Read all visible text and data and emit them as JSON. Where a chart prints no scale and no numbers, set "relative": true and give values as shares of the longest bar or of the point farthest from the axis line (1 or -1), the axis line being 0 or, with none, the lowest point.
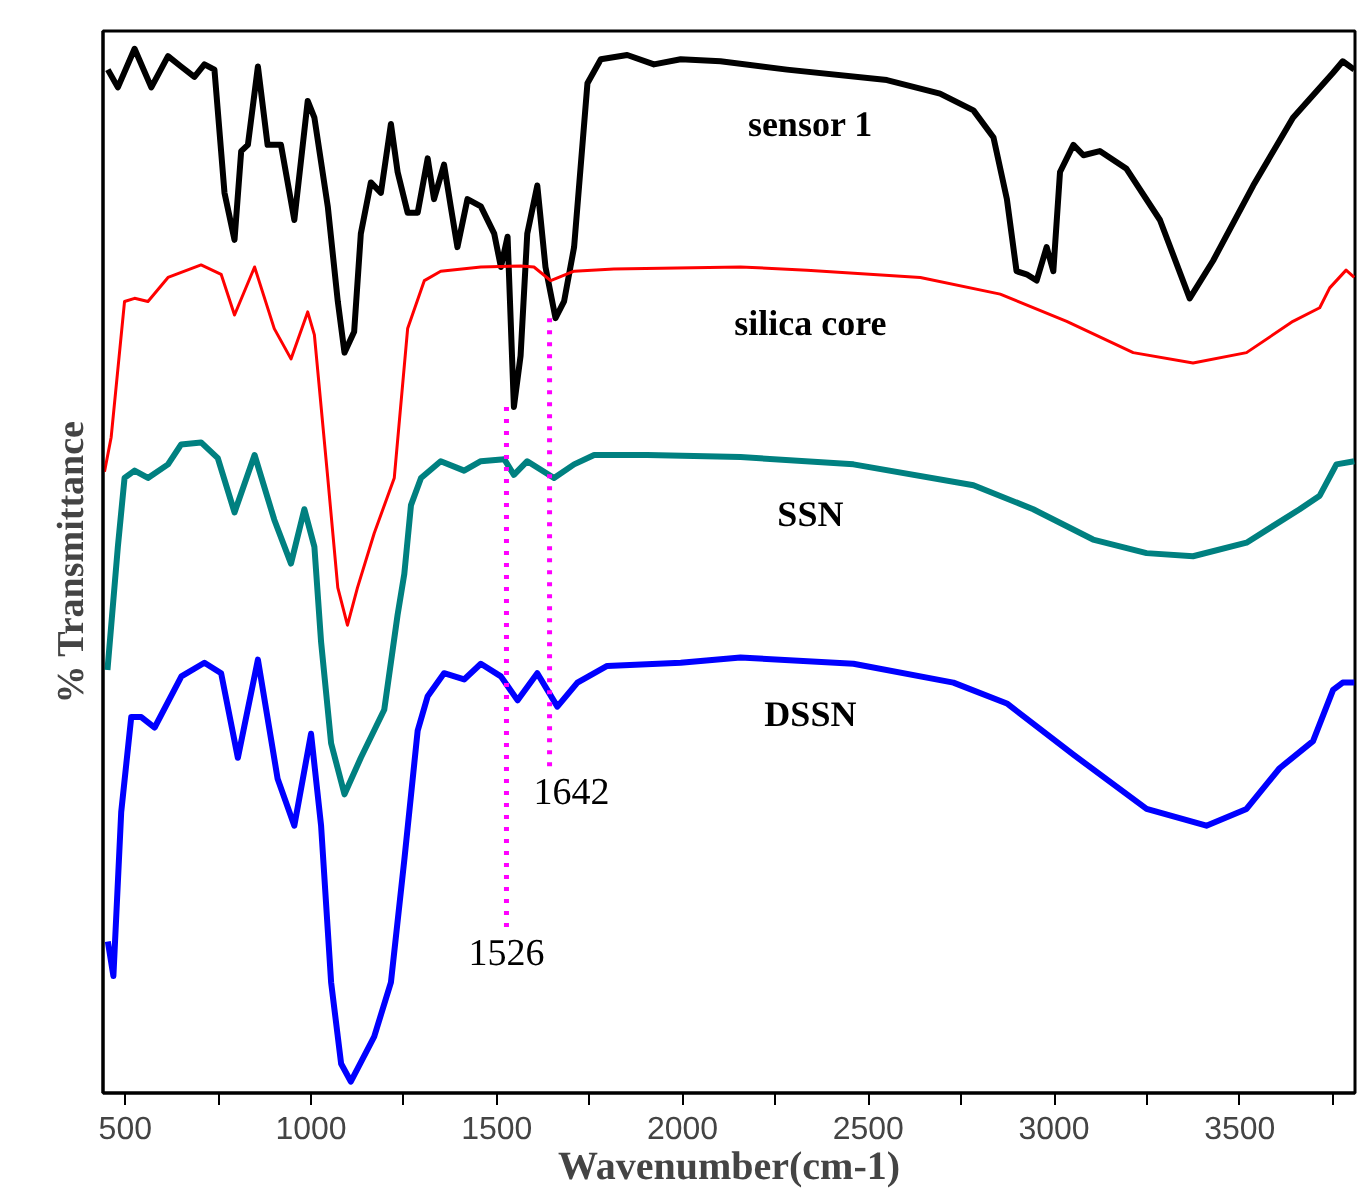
{
  "chart_data": {
    "type": "line",
    "relative": true,
    "xlabel": "Wavenumber(cm-1)",
    "ylabel": "% Transmittance",
    "xlim": [
      440,
      3810
    ],
    "xticks": [
      500,
      {
        "value": 750,
        "label": null
      },
      1000,
      {
        "value": 1250,
        "label": null
      },
      1500,
      {
        "value": 1750,
        "label": null
      },
      2000,
      {
        "value": 2250,
        "label": null
      },
      2500,
      {
        "value": 2750,
        "label": null
      },
      3000,
      {
        "value": 3250,
        "label": null
      },
      3500,
      {
        "value": 3750,
        "label": null
      }
    ],
    "annotations": [
      {
        "text": "1526",
        "x": 1526,
        "y": 0.657
      },
      {
        "text": "1642",
        "x": 1642,
        "y": 0.742
      }
    ],
    "series": [
      {
        "name": "sensor 1",
        "color": "#000000",
        "x": [
          453,
          480,
          525,
          570,
          615,
          650,
          686,
          713,
          740,
          767,
          794,
          812,
          830,
          857,
          883,
          919,
          955,
          991,
          1009,
          1045,
          1072,
          1090,
          1116,
          1134,
          1161,
          1188,
          1215,
          1233,
          1260,
          1287,
          1314,
          1331,
          1358,
          1376,
          1394,
          1421,
          1457,
          1493,
          1511,
          1529,
          1546,
          1564,
          1582,
          1609,
          1631,
          1658,
          1681,
          1708,
          1744,
          1780,
          1851,
          1923,
          1995,
          2102,
          2281,
          2550,
          2693,
          2783,
          2837,
          2873,
          2899,
          2926,
          2953,
          2980,
          2998,
          3016,
          3052,
          3079,
          3123,
          3195,
          3285,
          3365,
          3428,
          3536,
          3643,
          3751,
          3777,
          3808
        ],
        "values": [
          0.98,
          0.963,
          1.0,
          0.963,
          0.993,
          0.983,
          0.973,
          0.985,
          0.98,
          0.862,
          0.817,
          0.902,
          0.908,
          0.983,
          0.908,
          0.908,
          0.836,
          0.95,
          0.934,
          0.849,
          0.758,
          0.709,
          0.729,
          0.823,
          0.872,
          0.862,
          0.928,
          0.882,
          0.843,
          0.843,
          0.895,
          0.856,
          0.889,
          0.849,
          0.81,
          0.856,
          0.849,
          0.823,
          0.791,
          0.82,
          0.657,
          0.706,
          0.823,
          0.869,
          0.791,
          0.742,
          0.758,
          0.81,
          0.967,
          0.99,
          0.994,
          0.985,
          0.99,
          0.988,
          0.98,
          0.97,
          0.957,
          0.941,
          0.915,
          0.856,
          0.787,
          0.784,
          0.778,
          0.81,
          0.787,
          0.882,
          0.908,
          0.898,
          0.902,
          0.885,
          0.836,
          0.761,
          0.797,
          0.869,
          0.934,
          0.977,
          0.988,
          0.98
        ]
      },
      {
        "name": "silica core",
        "color": "#ff0000",
        "x": [
          444,
          462,
          498,
          525,
          561,
          615,
          704,
          758,
          794,
          848,
          901,
          946,
          991,
          1009,
          1045,
          1072,
          1098,
          1125,
          1170,
          1224,
          1260,
          1305,
          1349,
          1457,
          1564,
          1600,
          1645,
          1708,
          1815,
          2156,
          2335,
          2640,
          2855,
          3034,
          3213,
          3374,
          3518,
          3643,
          3715,
          3742,
          3786,
          3808
        ],
        "values": [
          0.595,
          0.628,
          0.758,
          0.761,
          0.758,
          0.781,
          0.793,
          0.784,
          0.745,
          0.791,
          0.732,
          0.703,
          0.748,
          0.726,
          0.589,
          0.484,
          0.448,
          0.484,
          0.536,
          0.589,
          0.732,
          0.778,
          0.787,
          0.791,
          0.792,
          0.791,
          0.778,
          0.787,
          0.789,
          0.791,
          0.788,
          0.781,
          0.765,
          0.739,
          0.709,
          0.699,
          0.709,
          0.739,
          0.752,
          0.771,
          0.788,
          0.781
        ]
      },
      {
        "name": "SSN",
        "color": "#008080",
        "x": [
          452,
          480,
          498,
          525,
          561,
          615,
          650,
          704,
          749,
          794,
          848,
          901,
          946,
          982,
          1009,
          1027,
          1054,
          1090,
          1134,
          1197,
          1233,
          1251,
          1269,
          1296,
          1349,
          1412,
          1457,
          1520,
          1546,
          1582,
          1654,
          1708,
          1762,
          1905,
          2156,
          2460,
          2783,
          2944,
          3105,
          3249,
          3374,
          3518,
          3661,
          3715,
          3760,
          3808
        ],
        "values": [
          0.405,
          0.523,
          0.589,
          0.596,
          0.589,
          0.602,
          0.621,
          0.623,
          0.608,
          0.556,
          0.611,
          0.549,
          0.507,
          0.559,
          0.523,
          0.432,
          0.335,
          0.286,
          0.321,
          0.367,
          0.458,
          0.497,
          0.563,
          0.589,
          0.605,
          0.596,
          0.605,
          0.607,
          0.592,
          0.605,
          0.589,
          0.602,
          0.611,
          0.611,
          0.609,
          0.602,
          0.582,
          0.559,
          0.53,
          0.517,
          0.514,
          0.527,
          0.559,
          0.572,
          0.602,
          0.605
        ]
      },
      {
        "name": "DSSN",
        "color": "#0000ff",
        "x": [
          453,
          468,
          489,
          516,
          543,
          579,
          651,
          713,
          758,
          803,
          857,
          910,
          955,
          1000,
          1027,
          1054,
          1081,
          1107,
          1170,
          1215,
          1251,
          1287,
          1314,
          1358,
          1412,
          1457,
          1511,
          1556,
          1609,
          1663,
          1717,
          1797,
          1995,
          2156,
          2460,
          2729,
          2873,
          3052,
          3249,
          3410,
          3518,
          3607,
          3697,
          3751,
          3777,
          3808
        ],
        "values": [
          0.145,
          0.112,
          0.269,
          0.36,
          0.36,
          0.35,
          0.399,
          0.412,
          0.402,
          0.321,
          0.415,
          0.301,
          0.256,
          0.344,
          0.256,
          0.106,
          0.028,
          0.011,
          0.054,
          0.106,
          0.223,
          0.347,
          0.38,
          0.402,
          0.396,
          0.411,
          0.399,
          0.376,
          0.402,
          0.37,
          0.393,
          0.409,
          0.412,
          0.417,
          0.411,
          0.393,
          0.373,
          0.324,
          0.272,
          0.256,
          0.272,
          0.311,
          0.337,
          0.386,
          0.393,
          0.393
        ]
      }
    ]
  }
}
